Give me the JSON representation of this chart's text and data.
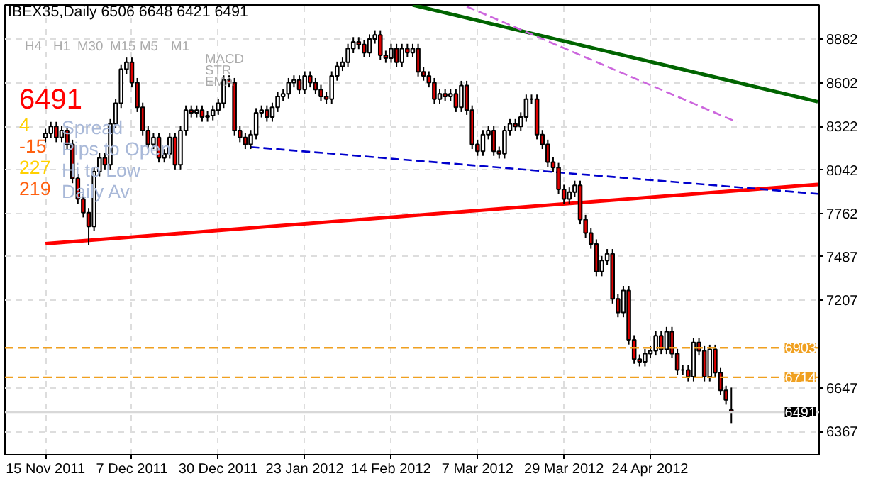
{
  "chart_data": {
    "type": "candlestick",
    "title": "IBEX35,Daily  6506 6648 6421 6491",
    "categories": [
      "15 Nov 2011",
      null,
      null,
      null,
      null,
      null,
      null,
      null,
      null,
      null,
      null,
      null,
      null,
      null,
      null,
      null,
      "7 Dec 2011",
      null,
      null,
      null,
      null,
      null,
      null,
      null,
      null,
      null,
      null,
      null,
      null,
      null,
      null,
      null,
      "30 Dec 2011",
      null,
      null,
      null,
      null,
      null,
      null,
      null,
      null,
      null,
      null,
      null,
      null,
      null,
      null,
      null,
      "23 Jan 2012",
      null,
      null,
      null,
      null,
      null,
      null,
      null,
      null,
      null,
      null,
      null,
      null,
      null,
      null,
      null,
      "14 Feb 2012",
      null,
      null,
      null,
      null,
      null,
      null,
      null,
      null,
      null,
      null,
      null,
      null,
      null,
      null,
      null,
      "7 Mar 2012",
      null,
      null,
      null,
      null,
      null,
      null,
      null,
      null,
      null,
      null,
      null,
      null,
      null,
      null,
      null,
      "29 Mar 2012",
      null,
      null,
      null,
      null,
      null,
      null,
      null,
      null,
      null,
      null,
      null,
      null,
      null,
      null,
      null,
      "24 Apr 2012",
      null,
      null,
      null,
      null,
      null,
      null,
      null,
      null,
      null,
      null,
      null,
      null,
      null,
      null,
      null,
      null,
      null,
      null,
      null,
      null,
      null,
      null,
      null,
      null,
      null,
      null,
      null,
      null,
      null,
      null,
      null
    ],
    "ohlc": [
      [
        8250,
        8307,
        8220,
        8277
      ],
      [
        8277,
        8351,
        8247,
        8321
      ],
      [
        8321,
        8351,
        8221,
        8251
      ],
      [
        8251,
        8325,
        8221,
        8295
      ],
      [
        8295,
        8325,
        8177,
        8207
      ],
      [
        8207,
        8237,
        7958,
        7988
      ],
      [
        7988,
        8018,
        7827,
        7857
      ],
      [
        7857,
        7887,
        7739,
        7769
      ],
      [
        7769,
        7799,
        7560,
        7681
      ],
      [
        7681,
        8062,
        7651,
        8032
      ],
      [
        8032,
        8150,
        8002,
        8120
      ],
      [
        8120,
        8150,
        8046,
        8076
      ],
      [
        8076,
        8369,
        8046,
        8339
      ],
      [
        8339,
        8500,
        8309,
        8470
      ],
      [
        8470,
        8719,
        8440,
        8689
      ],
      [
        8689,
        8763,
        8659,
        8733
      ],
      [
        8733,
        8763,
        8572,
        8602
      ],
      [
        8602,
        8632,
        8414,
        8444
      ],
      [
        8444,
        8474,
        8265,
        8295
      ],
      [
        8295,
        8325,
        8177,
        8207
      ],
      [
        8207,
        8281,
        8177,
        8251
      ],
      [
        8251,
        8281,
        8090,
        8120
      ],
      [
        8120,
        8176,
        8090,
        8146
      ],
      [
        8146,
        8281,
        8116,
        8251
      ],
      [
        8251,
        8281,
        8046,
        8076
      ],
      [
        8076,
        8325,
        8046,
        8295
      ],
      [
        8295,
        8456,
        8265,
        8426
      ],
      [
        8426,
        8456,
        8379,
        8409
      ],
      [
        8409,
        8456,
        8379,
        8426
      ],
      [
        8426,
        8456,
        8352,
        8382
      ],
      [
        8382,
        8421,
        8352,
        8391
      ],
      [
        8391,
        8456,
        8361,
        8426
      ],
      [
        8426,
        8500,
        8396,
        8470
      ],
      [
        8470,
        8649,
        8440,
        8619
      ],
      [
        8619,
        8649,
        8572,
        8602
      ],
      [
        8602,
        8632,
        8265,
        8295
      ],
      [
        8295,
        8325,
        8221,
        8251
      ],
      [
        8251,
        8281,
        8177,
        8207
      ],
      [
        8207,
        8299,
        8177,
        8269
      ],
      [
        8269,
        8439,
        8239,
        8409
      ],
      [
        8409,
        8456,
        8379,
        8426
      ],
      [
        8426,
        8456,
        8352,
        8382
      ],
      [
        8382,
        8474,
        8352,
        8444
      ],
      [
        8444,
        8544,
        8414,
        8514
      ],
      [
        8514,
        8561,
        8484,
        8531
      ],
      [
        8531,
        8632,
        8501,
        8602
      ],
      [
        8602,
        8649,
        8572,
        8619
      ],
      [
        8619,
        8649,
        8528,
        8558
      ],
      [
        8558,
        8675,
        8528,
        8645
      ],
      [
        8645,
        8675,
        8572,
        8602
      ],
      [
        8602,
        8632,
        8528,
        8558
      ],
      [
        8558,
        8588,
        8484,
        8514
      ],
      [
        8514,
        8544,
        8466,
        8496
      ],
      [
        8496,
        8675,
        8466,
        8645
      ],
      [
        8645,
        8737,
        8615,
        8707
      ],
      [
        8707,
        8763,
        8677,
        8733
      ],
      [
        8733,
        8851,
        8703,
        8821
      ],
      [
        8821,
        8894,
        8791,
        8864
      ],
      [
        8864,
        8894,
        8817,
        8847
      ],
      [
        8847,
        8877,
        8764,
        8794
      ],
      [
        8794,
        8912,
        8764,
        8882
      ],
      [
        8882,
        8938,
        8852,
        8908
      ],
      [
        8908,
        8938,
        8747,
        8777
      ],
      [
        8777,
        8807,
        8729,
        8759
      ],
      [
        8759,
        8851,
        8729,
        8821
      ],
      [
        8821,
        8851,
        8703,
        8733
      ],
      [
        8733,
        8851,
        8703,
        8821
      ],
      [
        8821,
        8851,
        8764,
        8794
      ],
      [
        8794,
        8851,
        8764,
        8821
      ],
      [
        8821,
        8851,
        8642,
        8672
      ],
      [
        8672,
        8702,
        8615,
        8645
      ],
      [
        8645,
        8675,
        8572,
        8602
      ],
      [
        8602,
        8632,
        8466,
        8496
      ],
      [
        8496,
        8561,
        8466,
        8531
      ],
      [
        8531,
        8561,
        8484,
        8514
      ],
      [
        8514,
        8561,
        8484,
        8531
      ],
      [
        8531,
        8561,
        8414,
        8444
      ],
      [
        8444,
        8614,
        8414,
        8584
      ],
      [
        8584,
        8614,
        8396,
        8426
      ],
      [
        8426,
        8456,
        8177,
        8207
      ],
      [
        8207,
        8237,
        8133,
        8163
      ],
      [
        8163,
        8299,
        8133,
        8269
      ],
      [
        8269,
        8325,
        8239,
        8295
      ],
      [
        8295,
        8325,
        8133,
        8163
      ],
      [
        8163,
        8193,
        8116,
        8146
      ],
      [
        8146,
        8325,
        8116,
        8295
      ],
      [
        8295,
        8369,
        8265,
        8339
      ],
      [
        8339,
        8369,
        8291,
        8321
      ],
      [
        8321,
        8412,
        8291,
        8382
      ],
      [
        8382,
        8526,
        8352,
        8496
      ],
      [
        8496,
        8526,
        8466,
        8496
      ],
      [
        8496,
        8526,
        8239,
        8269
      ],
      [
        8269,
        8299,
        8177,
        8207
      ],
      [
        8207,
        8237,
        8063,
        8093
      ],
      [
        8093,
        8123,
        8028,
        8058
      ],
      [
        8058,
        8088,
        7888,
        7918
      ],
      [
        7918,
        7948,
        7827,
        7857
      ],
      [
        7857,
        7931,
        7827,
        7901
      ],
      [
        7901,
        7974,
        7871,
        7944
      ],
      [
        7944,
        7974,
        7695,
        7725
      ],
      [
        7725,
        7755,
        7608,
        7638
      ],
      [
        7638,
        7668,
        7538,
        7568
      ],
      [
        7568,
        7598,
        7362,
        7392
      ],
      [
        7392,
        7492,
        7362,
        7462
      ],
      [
        7462,
        7536,
        7432,
        7506
      ],
      [
        7506,
        7536,
        7187,
        7217
      ],
      [
        7217,
        7247,
        7099,
        7129
      ],
      [
        7129,
        7300,
        7099,
        7270
      ],
      [
        7270,
        7300,
        6924,
        6954
      ],
      [
        6954,
        6984,
        6801,
        6831
      ],
      [
        6831,
        6861,
        6784,
        6814
      ],
      [
        6814,
        6896,
        6784,
        6866
      ],
      [
        6866,
        6914,
        6836,
        6884
      ],
      [
        6884,
        7010,
        6854,
        6980
      ],
      [
        6980,
        7010,
        6863,
        6893
      ],
      [
        6893,
        7037,
        6863,
        7007
      ],
      [
        7007,
        7037,
        6836,
        6866
      ],
      [
        6866,
        6896,
        6731,
        6761
      ],
      [
        6761,
        6791,
        6731,
        6761
      ],
      [
        6761,
        6791,
        6688,
        6718
      ],
      [
        6718,
        6967,
        6688,
        6937
      ],
      [
        6937,
        6967,
        6854,
        6884
      ],
      [
        6884,
        6914,
        6688,
        6718
      ],
      [
        6718,
        6923,
        6688,
        6893
      ],
      [
        6893,
        6923,
        6714,
        6744
      ],
      [
        6744,
        6774,
        6600,
        6630
      ],
      [
        6630,
        6660,
        6539,
        6569
      ],
      [
        6506,
        6648,
        6421,
        6491
      ],
      null,
      null,
      null,
      null,
      null,
      null,
      null,
      null,
      null,
      null,
      null,
      null,
      null,
      null,
      null,
      null
    ],
    "series": [
      {
        "type": "line",
        "color": "#ff0000",
        "values": [
          7570,
          null,
          null,
          null,
          null,
          null,
          null,
          null,
          null,
          null,
          null,
          null,
          null,
          null,
          null,
          null,
          null,
          null,
          null,
          null,
          null,
          null,
          null,
          null,
          null,
          null,
          null,
          null,
          null,
          null,
          null,
          null,
          null,
          null,
          null,
          null,
          null,
          null,
          null,
          null,
          null,
          null,
          null,
          null,
          null,
          null,
          null,
          null,
          null,
          null,
          null,
          null,
          null,
          null,
          null,
          null,
          null,
          null,
          null,
          null,
          null,
          null,
          null,
          null,
          null,
          null,
          null,
          null,
          null,
          null,
          null,
          null,
          null,
          null,
          null,
          null,
          null,
          null,
          null,
          null,
          null,
          null,
          null,
          null,
          null,
          null,
          null,
          null,
          null,
          null,
          null,
          null,
          null,
          null,
          null,
          null,
          null,
          null,
          null,
          null,
          null,
          null,
          null,
          null,
          null,
          null,
          null,
          null,
          null,
          null,
          null,
          null,
          null,
          null,
          null,
          null,
          null,
          null,
          null,
          null,
          null,
          null,
          null,
          null,
          null,
          null,
          null,
          null,
          null,
          null,
          null,
          null,
          null,
          null,
          null,
          null,
          null,
          null,
          null,
          null,
          null,
          null,
          null,
          7950
        ]
      },
      {
        "type": "line",
        "color": "#006400",
        "values": [
          null,
          null,
          null,
          null,
          null,
          null,
          null,
          null,
          null,
          null,
          null,
          null,
          null,
          null,
          null,
          null,
          null,
          null,
          null,
          null,
          null,
          null,
          null,
          null,
          null,
          null,
          null,
          null,
          null,
          null,
          null,
          null,
          null,
          null,
          null,
          null,
          null,
          null,
          null,
          null,
          null,
          null,
          null,
          null,
          null,
          null,
          null,
          null,
          null,
          null,
          null,
          null,
          null,
          null,
          null,
          null,
          null,
          null,
          null,
          null,
          null,
          null,
          null,
          null,
          null,
          null,
          null,
          null,
          9100,
          null,
          null,
          null,
          null,
          null,
          null,
          null,
          null,
          null,
          null,
          null,
          null,
          null,
          null,
          null,
          null,
          null,
          null,
          null,
          null,
          null,
          null,
          null,
          null,
          null,
          null,
          null,
          null,
          null,
          null,
          null,
          null,
          null,
          null,
          null,
          null,
          null,
          null,
          null,
          null,
          null,
          null,
          null,
          null,
          null,
          null,
          null,
          null,
          null,
          null,
          null,
          null,
          null,
          null,
          null,
          null,
          null,
          null,
          null,
          null,
          null,
          null,
          null,
          null,
          null,
          null,
          null,
          null,
          null,
          null,
          null,
          null,
          null,
          null,
          8480
        ]
      },
      {
        "type": "line",
        "color": "#0000cc",
        "line_style": "dashed",
        "values": [
          null,
          null,
          null,
          null,
          null,
          null,
          null,
          null,
          null,
          null,
          null,
          null,
          null,
          null,
          null,
          null,
          null,
          null,
          null,
          null,
          null,
          null,
          null,
          null,
          null,
          null,
          null,
          null,
          null,
          null,
          null,
          null,
          null,
          null,
          null,
          null,
          null,
          null,
          8190,
          null,
          null,
          null,
          null,
          null,
          null,
          null,
          null,
          null,
          null,
          null,
          null,
          null,
          null,
          null,
          null,
          null,
          null,
          null,
          null,
          null,
          null,
          null,
          null,
          null,
          null,
          null,
          null,
          null,
          null,
          null,
          null,
          null,
          null,
          null,
          null,
          null,
          null,
          null,
          null,
          null,
          null,
          null,
          null,
          null,
          null,
          null,
          null,
          null,
          null,
          null,
          null,
          null,
          null,
          null,
          8030,
          null,
          null,
          null,
          null,
          null,
          null,
          null,
          null,
          null,
          null,
          null,
          null,
          null,
          null,
          null,
          null,
          null,
          null,
          null,
          null,
          null,
          null,
          null,
          null,
          null,
          null,
          null,
          null,
          null,
          null,
          null,
          null,
          null,
          null,
          null,
          null,
          null,
          null,
          null,
          null,
          null,
          null,
          null,
          null,
          null,
          null,
          null,
          null,
          7890
        ]
      },
      {
        "type": "line",
        "color": "#cc66dd",
        "line_style": "dashed",
        "values": [
          null,
          null,
          null,
          null,
          null,
          null,
          null,
          null,
          null,
          null,
          null,
          null,
          null,
          null,
          null,
          null,
          null,
          null,
          null,
          null,
          null,
          null,
          null,
          null,
          null,
          null,
          null,
          null,
          null,
          null,
          null,
          null,
          null,
          null,
          null,
          null,
          null,
          null,
          null,
          null,
          null,
          null,
          null,
          null,
          null,
          null,
          null,
          null,
          null,
          null,
          null,
          null,
          null,
          null,
          null,
          null,
          null,
          null,
          null,
          null,
          null,
          null,
          null,
          null,
          null,
          null,
          null,
          null,
          null,
          null,
          null,
          null,
          null,
          null,
          null,
          null,
          null,
          null,
          9090,
          null,
          null,
          null,
          null,
          null,
          null,
          null,
          null,
          null,
          null,
          null,
          null,
          null,
          null,
          null,
          null,
          null,
          null,
          null,
          null,
          null,
          null,
          null,
          null,
          null,
          null,
          null,
          null,
          null,
          null,
          null,
          null,
          null,
          null,
          null,
          null,
          null,
          null,
          null,
          null,
          null,
          null,
          null,
          null,
          null,
          null,
          null,
          null,
          null,
          8350,
          null,
          null,
          null,
          null,
          null,
          null,
          null,
          null,
          null,
          null,
          null,
          null,
          null,
          null,
          null
        ]
      }
    ],
    "ref_lines": [
      {
        "axis": "y",
        "value": 6903,
        "label": "6903",
        "color": "#f0a020",
        "line_style": "dashed"
      },
      {
        "axis": "y",
        "value": 6714,
        "label": "6714",
        "color": "#f0a020",
        "line_style": "dashed"
      },
      {
        "axis": "y",
        "value": 6491,
        "label": "6491",
        "color": "#d8d8d8",
        "line_style": "solid"
      }
    ],
    "ylim": [
      6218,
      9100
    ],
    "yticks": [
      6367,
      6647,
      7207,
      7487,
      7762,
      8042,
      8322,
      8602,
      8882
    ],
    "grid": true,
    "annotations": [
      "H4",
      "H1",
      "M30",
      "M15",
      "M5",
      "M1",
      "MACD",
      "STR",
      "EMA",
      "6491",
      "4",
      "-15",
      "227",
      "219",
      "Spread",
      "Pips to Open",
      "Hi to Low",
      "Daily Av"
    ]
  }
}
